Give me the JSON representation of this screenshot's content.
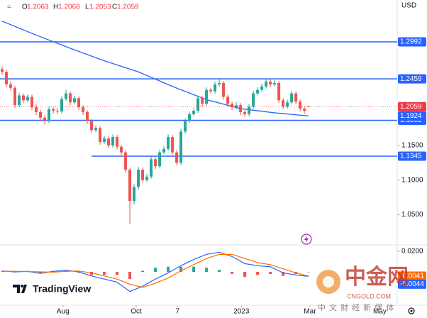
{
  "chart_data": {
    "type": "candlestick",
    "currency": "USD",
    "ohlc_labels": [
      "O",
      "H",
      "L",
      "C"
    ],
    "up_color": "#26a69a",
    "down_color": "#ef5350",
    "ohlc": [
      [
        1.26,
        1.264,
        1.252,
        1.256
      ],
      [
        1.256,
        1.259,
        1.234,
        1.238
      ],
      [
        1.238,
        1.242,
        1.229,
        1.233
      ],
      [
        1.233,
        1.236,
        1.204,
        1.208
      ],
      [
        1.208,
        1.226,
        1.205,
        1.222
      ],
      [
        1.222,
        1.225,
        1.211,
        1.215
      ],
      [
        1.215,
        1.224,
        1.212,
        1.22
      ],
      [
        1.22,
        1.223,
        1.201,
        1.205
      ],
      [
        1.205,
        1.209,
        1.194,
        1.198
      ],
      [
        1.198,
        1.201,
        1.186,
        1.19
      ],
      [
        1.19,
        1.193,
        1.18,
        1.185
      ],
      [
        1.185,
        1.206,
        1.182,
        1.202
      ],
      [
        1.202,
        1.205,
        1.196,
        1.2
      ],
      [
        1.2,
        1.204,
        1.195,
        1.199
      ],
      [
        1.199,
        1.221,
        1.196,
        1.217
      ],
      [
        1.217,
        1.23,
        1.214,
        1.225
      ],
      [
        1.225,
        1.228,
        1.208,
        1.212
      ],
      [
        1.212,
        1.222,
        1.209,
        1.218
      ],
      [
        1.218,
        1.221,
        1.201,
        1.205
      ],
      [
        1.205,
        1.208,
        1.194,
        1.198
      ],
      [
        1.198,
        1.201,
        1.181,
        1.185
      ],
      [
        1.185,
        1.188,
        1.168,
        1.172
      ],
      [
        1.172,
        1.179,
        1.169,
        1.175
      ],
      [
        1.175,
        1.178,
        1.151,
        1.155
      ],
      [
        1.155,
        1.164,
        1.152,
        1.16
      ],
      [
        1.16,
        1.163,
        1.146,
        1.15
      ],
      [
        1.15,
        1.166,
        1.147,
        1.162
      ],
      [
        1.162,
        1.165,
        1.144,
        1.148
      ],
      [
        1.148,
        1.151,
        1.136,
        1.14
      ],
      [
        1.14,
        1.143,
        1.111,
        1.115
      ],
      [
        1.115,
        1.118,
        1.037,
        1.07
      ],
      [
        1.07,
        1.094,
        1.065,
        1.09
      ],
      [
        1.09,
        1.119,
        1.086,
        1.115
      ],
      [
        1.115,
        1.118,
        1.096,
        1.1
      ],
      [
        1.1,
        1.109,
        1.097,
        1.105
      ],
      [
        1.105,
        1.134,
        1.102,
        1.13
      ],
      [
        1.13,
        1.133,
        1.116,
        1.12
      ],
      [
        1.12,
        1.144,
        1.117,
        1.14
      ],
      [
        1.14,
        1.149,
        1.137,
        1.145
      ],
      [
        1.145,
        1.166,
        1.142,
        1.162
      ],
      [
        1.162,
        1.165,
        1.136,
        1.14
      ],
      [
        1.14,
        1.143,
        1.121,
        1.125
      ],
      [
        1.125,
        1.174,
        1.122,
        1.17
      ],
      [
        1.17,
        1.189,
        1.167,
        1.185
      ],
      [
        1.185,
        1.199,
        1.182,
        1.195
      ],
      [
        1.195,
        1.204,
        1.192,
        1.2
      ],
      [
        1.2,
        1.222,
        1.197,
        1.218
      ],
      [
        1.218,
        1.221,
        1.206,
        1.21
      ],
      [
        1.21,
        1.234,
        1.207,
        1.23
      ],
      [
        1.23,
        1.233,
        1.224,
        1.228
      ],
      [
        1.228,
        1.242,
        1.225,
        1.238
      ],
      [
        1.238,
        1.247,
        1.235,
        1.24
      ],
      [
        1.24,
        1.243,
        1.216,
        1.22
      ],
      [
        1.22,
        1.223,
        1.206,
        1.21
      ],
      [
        1.21,
        1.213,
        1.201,
        1.205
      ],
      [
        1.205,
        1.212,
        1.202,
        1.208
      ],
      [
        1.208,
        1.211,
        1.194,
        1.198
      ],
      [
        1.198,
        1.201,
        1.191,
        1.195
      ],
      [
        1.195,
        1.21,
        1.192,
        1.206
      ],
      [
        1.206,
        1.229,
        1.203,
        1.225
      ],
      [
        1.225,
        1.234,
        1.222,
        1.23
      ],
      [
        1.23,
        1.239,
        1.227,
        1.235
      ],
      [
        1.235,
        1.246,
        1.232,
        1.242
      ],
      [
        1.242,
        1.245,
        1.234,
        1.238
      ],
      [
        1.238,
        1.244,
        1.235,
        1.24
      ],
      [
        1.24,
        1.243,
        1.211,
        1.215
      ],
      [
        1.215,
        1.218,
        1.202,
        1.206
      ],
      [
        1.206,
        1.216,
        1.203,
        1.212
      ],
      [
        1.212,
        1.229,
        1.209,
        1.225
      ],
      [
        1.225,
        1.228,
        1.209,
        1.213
      ],
      [
        1.213,
        1.216,
        1.199,
        1.203
      ],
      [
        1.203,
        1.206,
        1.196,
        1.2
      ],
      [
        1.2063,
        1.2068,
        1.2053,
        1.2059
      ]
    ],
    "ma": {
      "color": "#2962ff",
      "x": [
        0,
        8,
        16,
        24,
        32,
        40,
        48,
        56,
        64,
        72
      ],
      "values": [
        1.329,
        1.309,
        1.29,
        1.272,
        1.256,
        1.235,
        1.216,
        1.203,
        1.197,
        1.1924
      ]
    },
    "levels": [
      {
        "value": 1.2992
      },
      {
        "value": 1.2459
      },
      {
        "value": 1.1862
      },
      {
        "value": 1.1345,
        "start": 21
      }
    ],
    "level_color": "#2962ff",
    "xlim": [
      -0.5,
      92.8
    ],
    "xticks": [
      {
        "value": 14.3,
        "label": "Aug"
      },
      {
        "value": 31.5,
        "label": "Oct"
      },
      {
        "value": 41.2,
        "label": "7"
      },
      {
        "value": 56.2,
        "label": "2023"
      },
      {
        "value": 72.3,
        "label": "Mar"
      },
      {
        "value": 88.7,
        "label": "May"
      }
    ],
    "ylim": [
      1.0066,
      1.3596
    ],
    "yticks": [
      {
        "value": 1.05,
        "label": "1.0500"
      },
      {
        "value": 1.1,
        "label": "1.1000"
      },
      {
        "value": 1.15,
        "label": "1.1500"
      }
    ],
    "macd_pane": {
      "ylim": [
        -0.0324,
        0.0262
      ],
      "yticks": [
        {
          "value": 0.02,
          "label": "0.0200"
        }
      ],
      "x": [
        0,
        3,
        6,
        9,
        12,
        15,
        18,
        21,
        24,
        27,
        30,
        33,
        36,
        39,
        42,
        45,
        48,
        51,
        54,
        57,
        60,
        63,
        66,
        69,
        72
      ],
      "macd": {
        "color": "#2962ff",
        "values": [
          0.001,
          0.0,
          0.0005,
          -0.0015,
          0.0005,
          0.0015,
          0.0,
          -0.004,
          -0.007,
          -0.01,
          -0.019,
          -0.014,
          -0.007,
          -0.001,
          0.006,
          0.012,
          0.017,
          0.019,
          0.015,
          0.008,
          0.006,
          0.005,
          -0.001,
          -0.003,
          -0.0044
        ]
      },
      "signal": {
        "color": "#ff6d00",
        "values": [
          0.0005,
          0.0005,
          0.0003,
          0.0,
          -0.0003,
          0.0005,
          0.0008,
          -0.001,
          -0.004,
          -0.007,
          -0.012,
          -0.015,
          -0.011,
          -0.006,
          0.001,
          0.007,
          0.013,
          0.017,
          0.017,
          0.013,
          0.009,
          0.007,
          0.003,
          -0.001,
          -0.0041
        ]
      },
      "histogram": {
        "up_color": "#26a69a",
        "down_color": "#ef5350",
        "values": [
          0.0005,
          -0.0005,
          0.0002,
          -0.0015,
          0.0008,
          0.001,
          -0.0008,
          -0.003,
          -0.003,
          -0.003,
          -0.007,
          0.001,
          0.004,
          0.005,
          0.005,
          0.005,
          0.004,
          0.002,
          -0.002,
          -0.005,
          -0.003,
          -0.002,
          -0.004,
          -0.002,
          -0.0003
        ]
      }
    }
  },
  "branding": {
    "logo": "TradingView",
    "watermark": "中金网",
    "watermark_url": "CNGOLD.COM",
    "tagline": "中 文 财 经 新 媒 体"
  }
}
